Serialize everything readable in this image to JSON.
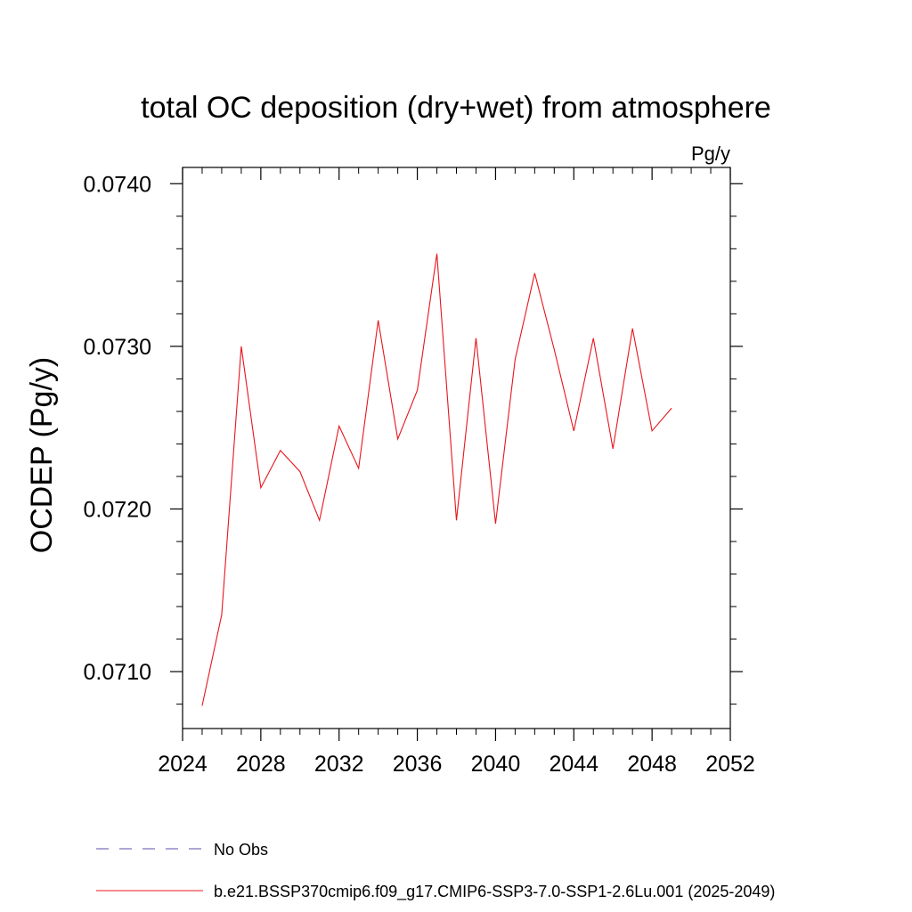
{
  "chart_data": {
    "type": "line",
    "title": "total OC deposition (dry+wet) from atmosphere",
    "units_label": "Pg/y",
    "xlabel": "",
    "ylabel": "OCDEP  (Pg/y)",
    "xlim": [
      2024,
      2052
    ],
    "ylim": [
      0.07065,
      0.0741
    ],
    "x_ticks": [
      2024,
      2028,
      2032,
      2036,
      2040,
      2044,
      2048,
      2052
    ],
    "x_tick_labels": [
      "2024",
      "2028",
      "2032",
      "2036",
      "2040",
      "2044",
      "2048",
      "2052"
    ],
    "y_ticks": [
      0.071,
      0.072,
      0.073,
      0.074
    ],
    "y_tick_labels": [
      "0.0710",
      "0.0720",
      "0.0730",
      "0.0740"
    ],
    "grid": false,
    "legend_position": "bottom",
    "legend": [
      {
        "label": "No Obs",
        "color": "#5a4fa8",
        "style": "dashed"
      },
      {
        "label": "b.e21.BSSP370cmip6.f09_g17.CMIP6-SSP3-7.0-SSP1-2.6Lu.001 (2025-2049)",
        "color": "#e8141c",
        "style": "solid"
      }
    ],
    "series": [
      {
        "name": "b.e21.BSSP370cmip6.f09_g17.CMIP6-SSP3-7.0-SSP1-2.6Lu.001 (2025-2049)",
        "color": "#e8141c",
        "x": [
          2025,
          2026,
          2027,
          2028,
          2029,
          2030,
          2031,
          2032,
          2033,
          2034,
          2035,
          2036,
          2037,
          2038,
          2039,
          2040,
          2041,
          2042,
          2043,
          2044,
          2045,
          2046,
          2047,
          2048,
          2049
        ],
        "y": [
          0.07079,
          0.07135,
          0.073,
          0.07213,
          0.07236,
          0.07223,
          0.07193,
          0.07251,
          0.07225,
          0.07316,
          0.07243,
          0.07273,
          0.07357,
          0.07193,
          0.07305,
          0.07191,
          0.07292,
          0.07345,
          0.07298,
          0.07248,
          0.07305,
          0.07237,
          0.07311,
          0.07248,
          0.07262
        ]
      }
    ]
  }
}
